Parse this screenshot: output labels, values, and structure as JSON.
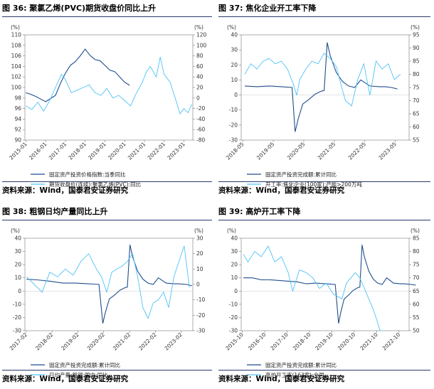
{
  "colors": {
    "dark": "#1f4e8c",
    "light": "#4fc3f7",
    "rule": "#2a3b6e"
  },
  "panels": [
    {
      "title": "图 36: 聚氯乙烯(PVC)期货收盘价同比上升",
      "source": "资料来源：Wind，国泰君安证券研究",
      "chart_data": {
        "type": "line",
        "left_unit": "(%)",
        "right_unit": "(%)",
        "left_ylim": [
          90,
          110
        ],
        "left_ticks": [
          90,
          92,
          94,
          96,
          98,
          100,
          102,
          104,
          106,
          108,
          110
        ],
        "right_ylim": [
          -80,
          120
        ],
        "right_ticks": [
          -80,
          -60,
          -40,
          -20,
          0,
          20,
          40,
          60,
          80,
          100,
          120
        ],
        "x_ticks": [
          "2015-01",
          "2016-01",
          "2017-01",
          "2018-01",
          "2019-01",
          "2020-01",
          "2021-01",
          "2022-01",
          "2023-01"
        ],
        "series": [
          {
            "name": "固定资产投资价格指数:当季同比",
            "axis": "left",
            "color": "dark",
            "x": [
              2015.0,
              2015.25,
              2015.5,
              2015.75,
              2016.0,
              2016.25,
              2016.5,
              2016.75,
              2017.0,
              2017.25,
              2017.5,
              2017.75,
              2018.0,
              2018.25,
              2018.5,
              2018.75,
              2019.0,
              2019.25,
              2019.5,
              2019.75,
              2020.0,
              2020.25
            ],
            "y": [
              99.0,
              98.7,
              98.3,
              97.8,
              97.3,
              97.9,
              98.5,
              100.8,
              102.7,
              104.2,
              104.9,
              106.0,
              107.3,
              106.1,
              105.3,
              105.1,
              104.2,
              103.3,
              103.0,
              102.0,
              101.0,
              100.4
            ]
          },
          {
            "name": "期货收盘价(连续):聚氯乙烯(PVC):同比",
            "axis": "right",
            "color": "light",
            "x": [
              2015.0,
              2015.3,
              2015.6,
              2015.9,
              2016.2,
              2016.5,
              2016.8,
              2017.0,
              2017.3,
              2017.6,
              2017.9,
              2018.2,
              2018.5,
              2018.8,
              2019.1,
              2019.4,
              2019.7,
              2020.0,
              2020.3,
              2020.6,
              2020.9,
              2021.1,
              2021.3,
              2021.6,
              2021.8,
              2022.0,
              2022.3,
              2022.6,
              2022.8,
              2023.0,
              2023.2,
              2023.4
            ],
            "y": [
              -15,
              -22,
              -8,
              -25,
              -5,
              20,
              45,
              35,
              10,
              15,
              20,
              25,
              10,
              5,
              18,
              0,
              5,
              -5,
              -15,
              10,
              30,
              50,
              60,
              40,
              78,
              45,
              30,
              -5,
              -30,
              -20,
              -28,
              -12
            ]
          }
        ]
      }
    },
    {
      "title": "图 37: 焦化企业开工率下降",
      "source": "资料来源：Wind，国泰君安证券研究",
      "chart_data": {
        "type": "line",
        "left_unit": "(%)",
        "right_unit": "(%)",
        "left_ylim": [
          -30,
          40
        ],
        "left_ticks": [
          -30,
          -20,
          -10,
          0,
          10,
          20,
          30,
          40
        ],
        "right_ylim": [
          55,
          95
        ],
        "right_ticks": [
          55,
          60,
          65,
          70,
          75,
          80,
          85,
          90,
          95
        ],
        "x_ticks": [
          "2018-05",
          "2019-05",
          "2020-05",
          "2021-05",
          "2022-05",
          "2023-05"
        ],
        "series": [
          {
            "name": "固定资产投资完成额:累计同比",
            "axis": "left",
            "color": "dark",
            "x": [
              2018.4,
              2018.8,
              2019.2,
              2019.6,
              2019.95,
              2020.05,
              2020.15,
              2020.3,
              2020.5,
              2020.7,
              2020.9,
              2021.0,
              2021.1,
              2021.2,
              2021.4,
              2021.6,
              2021.8,
              2022.0,
              2022.2,
              2022.5,
              2022.8,
              2023.0,
              2023.2,
              2023.4
            ],
            "y": [
              6.0,
              5.5,
              6.0,
              5.5,
              5.0,
              -24.5,
              -16.0,
              -6.0,
              -3.0,
              0.5,
              2.5,
              3.0,
              35.0,
              26.0,
              15.0,
              9.0,
              6.0,
              5.0,
              10.0,
              6.0,
              5.5,
              5.5,
              5.0,
              4.0
            ]
          },
          {
            "name": "开工率:焦化企业(100家):产能>200万吨",
            "axis": "right",
            "color": "light",
            "x": [
              2018.4,
              2018.6,
              2018.8,
              2019.0,
              2019.2,
              2019.4,
              2019.6,
              2019.8,
              2020.0,
              2020.1,
              2020.2,
              2020.4,
              2020.6,
              2020.8,
              2021.0,
              2021.2,
              2021.4,
              2021.6,
              2021.7,
              2021.9,
              2022.1,
              2022.3,
              2022.5,
              2022.7,
              2022.9,
              2023.1,
              2023.3,
              2023.5
            ],
            "y": [
              80,
              84,
              82,
              85,
              86,
              84,
              85,
              82,
              76,
              72,
              78,
              82,
              85,
              84,
              88,
              86,
              83,
              74,
              70,
              68,
              78,
              84,
              72,
              85,
              82,
              84,
              78,
              80
            ]
          }
        ]
      }
    },
    {
      "title": "图 38: 粗钢日均产量同比上升",
      "source": "资料来源：Wind，国泰君安证券研究",
      "chart_data": {
        "type": "line",
        "left_unit": "(%)",
        "right_unit": "(%)",
        "left_ylim": [
          -30,
          40
        ],
        "left_ticks": [
          -30,
          -20,
          -10,
          0,
          10,
          20,
          30,
          40
        ],
        "right_ylim": [
          -30,
          30
        ],
        "right_ticks": [
          -30,
          -20,
          -10,
          0,
          10,
          20,
          30
        ],
        "x_ticks": [
          "2017-02",
          "2018-02",
          "2019-02",
          "2020-02",
          "2021-02",
          "2022-02",
          "2023-02"
        ],
        "series": [
          {
            "name": "固定资产投资完成额:累计同比",
            "axis": "left",
            "color": "dark",
            "x": [
              2017.1,
              2017.5,
              2018.0,
              2018.5,
              2019.0,
              2019.5,
              2019.9,
              2020.05,
              2020.15,
              2020.3,
              2020.5,
              2020.7,
              2020.9,
              2021.0,
              2021.1,
              2021.2,
              2021.4,
              2021.6,
              2021.8,
              2022.0,
              2022.2,
              2022.5,
              2022.8,
              2023.0,
              2023.3,
              2023.5
            ],
            "y": [
              9.0,
              8.5,
              7.5,
              6.0,
              6.0,
              5.5,
              5.0,
              -24.5,
              -16.0,
              -6.0,
              -3.0,
              0.5,
              2.5,
              3.0,
              35.0,
              26.0,
              15.0,
              9.0,
              6.0,
              5.0,
              10.0,
              6.0,
              5.5,
              5.5,
              5.0,
              4.0
            ]
          },
          {
            "name": "日均产量:粗钢:国内:同比",
            "axis": "right",
            "color": "light",
            "x": [
              2017.1,
              2017.4,
              2017.7,
              2018.0,
              2018.3,
              2018.6,
              2018.9,
              2019.2,
              2019.5,
              2019.8,
              2020.0,
              2020.2,
              2020.4,
              2020.6,
              2020.8,
              2021.0,
              2021.2,
              2021.4,
              2021.6,
              2021.8,
              2022.0,
              2022.2,
              2022.4,
              2022.6,
              2022.8,
              2023.0,
              2023.2,
              2023.4
            ],
            "y": [
              5,
              0,
              -5,
              8,
              5,
              10,
              6,
              15,
              20,
              10,
              5,
              -5,
              8,
              10,
              12,
              15,
              20,
              5,
              -15,
              -22,
              -12,
              -10,
              -5,
              -15,
              5,
              15,
              25,
              -2
            ]
          }
        ]
      }
    },
    {
      "title": "图 39: 高炉开工率下降",
      "source": "资料来源：Wind，国泰君安证券研究",
      "chart_data": {
        "type": "line",
        "left_unit": "(%)",
        "right_unit": "(%)",
        "left_ylim": [
          -30,
          40
        ],
        "left_ticks": [
          -30,
          -20,
          -10,
          0,
          10,
          20,
          30,
          40
        ],
        "right_ylim": [
          50,
          85
        ],
        "right_ticks": [
          50,
          55,
          60,
          65,
          70,
          75,
          80,
          85
        ],
        "x_ticks": [
          "2015-10",
          "2016-10",
          "2017-10",
          "2018-10",
          "2019-10",
          "2020-10",
          "2021-10",
          "2022-10"
        ],
        "series": [
          {
            "name": "固定资产投资完成额:累计同比",
            "axis": "left",
            "color": "dark",
            "x": [
              2015.8,
              2016.2,
              2016.6,
              2017.0,
              2017.4,
              2017.8,
              2018.2,
              2018.6,
              2019.0,
              2019.5,
              2019.9,
              2020.05,
              2020.15,
              2020.3,
              2020.5,
              2020.7,
              2020.9,
              2021.0,
              2021.1,
              2021.2,
              2021.4,
              2021.6,
              2021.8,
              2022.0,
              2022.2,
              2022.5,
              2022.8,
              2023.0,
              2023.3,
              2023.5
            ],
            "y": [
              10.0,
              10.0,
              8.5,
              8.5,
              8.0,
              7.5,
              7.0,
              5.5,
              6.0,
              5.5,
              5.0,
              -24.5,
              -16.0,
              -6.0,
              -3.0,
              0.5,
              2.5,
              3.0,
              35.0,
              26.0,
              15.0,
              9.0,
              6.0,
              5.0,
              10.0,
              6.0,
              5.5,
              5.5,
              5.0,
              4.5
            ]
          },
          {
            "name": "高炉开工率(163家):全国",
            "axis": "right",
            "color": "light",
            "x": [
              2015.8,
              2016.0,
              2016.3,
              2016.6,
              2016.9,
              2017.2,
              2017.5,
              2017.8,
              2018.0,
              2018.3,
              2018.6,
              2018.9,
              2019.2,
              2019.5,
              2019.8,
              2020.0,
              2020.2,
              2020.4,
              2020.6,
              2020.8,
              2021.0,
              2021.2,
              2021.4,
              2021.6,
              2021.8,
              2021.9,
              2022.0
            ],
            "y": [
              79,
              76,
              80,
              78,
              82,
              76,
              78,
              72,
              65,
              73,
              72,
              70,
              66,
              68,
              64,
              63,
              62,
              68,
              70,
              72,
              70,
              66,
              62,
              58,
              53,
              50,
              50
            ]
          }
        ]
      }
    }
  ]
}
